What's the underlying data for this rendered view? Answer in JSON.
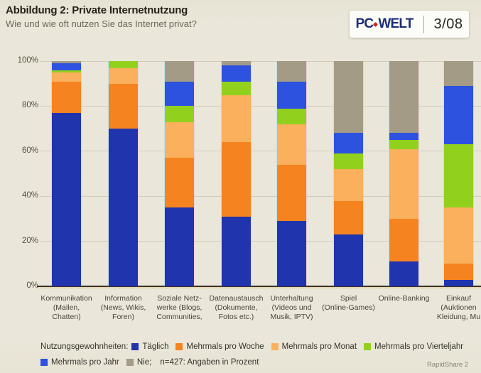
{
  "header": {
    "title": "Abbildung 2: Private Internetnutzung",
    "subtitle": "Wie und wie oft nutzen Sie das Internet privat?"
  },
  "logo": {
    "brand_left": "PC",
    "brand_right": "WELT",
    "issue": "3/08",
    "brand_color": "#1c2d77",
    "dot_color": "#cf2a1b"
  },
  "chart_data": {
    "type": "bar",
    "stacked": true,
    "ylabel": "",
    "xlabel": "",
    "ylim": [
      0,
      100
    ],
    "grid": true,
    "yticks": [
      0,
      20,
      40,
      60,
      80,
      100
    ],
    "ytick_suffix": "%",
    "categories": [
      "Kommunikation (Mailen, Chatten)",
      "Information (News, Wikis, Foren)",
      "Soziale Netzwerke (Blogs, Communities,",
      "Datenaustausch (Dokumente, Fotos etc.)",
      "Unterhaltung (Videos und Musik, IPTV)",
      "Spiel (Online-Games)",
      "Online-Banking",
      "Einkauf (Auktionen Kleidung, Mu"
    ],
    "category_label_lines": [
      [
        "Kommunikation",
        "(Mailen,",
        "Chatten)"
      ],
      [
        "Information",
        "(News, Wikis,",
        "Foren)"
      ],
      [
        "Soziale Netz-",
        "werke (Blogs,",
        "Communities,"
      ],
      [
        "Datenaustausch",
        "(Dokumente,",
        "Fotos etc.)"
      ],
      [
        "Unterhaltung",
        "(Videos und",
        "Musik, IPTV)"
      ],
      [
        "Spiel",
        "(Online-Games)"
      ],
      [
        "Online-Banking"
      ],
      [
        "Einkauf",
        "(Auktionen",
        "Kleidung, Mu"
      ]
    ],
    "series": [
      {
        "name": "Täglich",
        "legend_label": "Täglich",
        "color": "#2034ad",
        "values": [
          77,
          70,
          35,
          31,
          29,
          23,
          11,
          3
        ]
      },
      {
        "name": "Mehrmals pro Woche",
        "legend_label": "Mehrmals pro Woche",
        "color": "#f5831f",
        "values": [
          14,
          20,
          22,
          33,
          25,
          15,
          19,
          7
        ]
      },
      {
        "name": "Mehrmals pro Monat",
        "legend_label": "Mehrmals pro Monat",
        "color": "#fab05c",
        "values": [
          4,
          7,
          16,
          21,
          18,
          14,
          31,
          25
        ]
      },
      {
        "name": "Mehrmals pro Vierteljahr",
        "legend_label": "Mehrmals pro Vierteljahr",
        "color": "#92d01e",
        "values": [
          1,
          3,
          7,
          6,
          7,
          7,
          4,
          28
        ]
      },
      {
        "name": "Mehrmals pro Jahr",
        "legend_label": "Mehrmals pro Jahr",
        "color": "#2d52e0",
        "values": [
          3,
          0,
          11,
          7,
          12,
          9,
          3,
          26
        ]
      },
      {
        "name": "Nie",
        "legend_label": "Nie;",
        "color": "#a39b85",
        "values": [
          1,
          0,
          9,
          2,
          9,
          32,
          32,
          11
        ]
      }
    ],
    "legend": {
      "position": "bottom",
      "prefix": "Nutzungsgewohnheiten:",
      "note": "n=427: Angaben in Prozent",
      "items_in_first_row": 4
    },
    "source_note": "RapidShare 2"
  }
}
